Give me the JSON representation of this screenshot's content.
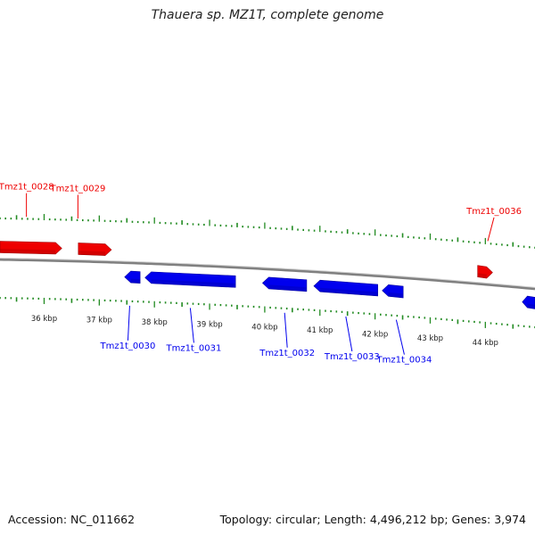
{
  "title": "Thauera sp. MZ1T, complete genome",
  "footer": {
    "accession": "Accession: NC_011662",
    "summary": "Topology: circular; Length: 4,496,212 bp; Genes: 3,974"
  },
  "colors": {
    "forward": "#ee0000",
    "reverse": "#0000ee",
    "ticks": "#228b22",
    "backbone": "#808080"
  },
  "axis": {
    "start_kbp": 35.2,
    "end_kbp": 44.9,
    "unit": "kbp"
  },
  "tick_labels": [
    "36 kbp",
    "37 kbp",
    "38 kbp",
    "39 kbp",
    "40 kbp",
    "41 kbp",
    "42 kbp",
    "43 kbp",
    "44 kbp"
  ],
  "tick_values": [
    36,
    37,
    38,
    39,
    40,
    41,
    42,
    43,
    44
  ],
  "genes": [
    {
      "label": "Tmz1t_0028",
      "strand": "+",
      "start_kbp": 35.2,
      "end_kbp": 36.32,
      "show_label": true
    },
    {
      "label": "Tmz1t_0029",
      "strand": "+",
      "start_kbp": 36.62,
      "end_kbp": 37.22,
      "show_label": true
    },
    {
      "label": "Tmz1t_0036",
      "strand": "+",
      "start_kbp": 43.86,
      "end_kbp": 44.13,
      "show_label": true
    },
    {
      "label": "Tmz1t_0030",
      "strand": "-",
      "start_kbp": 37.46,
      "end_kbp": 37.74,
      "show_label": true
    },
    {
      "label": "Tmz1t_0031",
      "strand": "-",
      "start_kbp": 37.83,
      "end_kbp": 39.47,
      "show_label": true
    },
    {
      "label": "Tmz1t_0032",
      "strand": "-",
      "start_kbp": 39.96,
      "end_kbp": 40.76,
      "show_label": true
    },
    {
      "label": "Tmz1t_0033",
      "strand": "-",
      "start_kbp": 40.89,
      "end_kbp": 42.05,
      "show_label": true
    },
    {
      "label": "Tmz1t_0034",
      "strand": "-",
      "start_kbp": 42.13,
      "end_kbp": 42.51,
      "show_label": true
    },
    {
      "label": "",
      "strand": "-",
      "start_kbp": 44.67,
      "end_kbp": 44.9,
      "show_label": false
    }
  ]
}
